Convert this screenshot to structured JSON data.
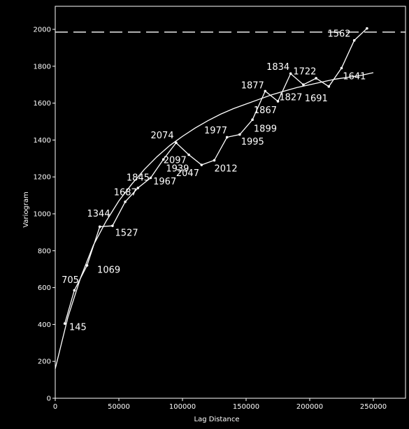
{
  "chart_data": {
    "type": "line",
    "title": "",
    "xlabel": "Lag Distance",
    "ylabel": "Variogram",
    "xlim": [
      0,
      250000
    ],
    "ylim": [
      0,
      2000
    ],
    "x_ticks": [
      0,
      50000,
      100000,
      150000,
      200000,
      250000
    ],
    "x_tick_labels": [
      "0",
      "50000",
      "100000",
      "150000",
      "200000",
      "250000"
    ],
    "y_ticks": [
      0,
      200,
      400,
      600,
      800,
      1000,
      1200,
      1400,
      1600,
      1800,
      2000
    ],
    "y_tick_labels": [
      "0",
      "200",
      "400",
      "600",
      "800",
      "1000",
      "1200",
      "1400",
      "1600",
      "1800",
      "2000"
    ],
    "grid": false,
    "colors": {
      "background": "#000000",
      "foreground": "#ffffff"
    },
    "series": [
      {
        "kind": "experimental",
        "style": "polyline-with-points",
        "x": [
          7500,
          15000,
          25000,
          35000,
          45000,
          55000,
          65000,
          75000,
          85000,
          95000,
          105000,
          115000,
          125000,
          135000,
          145000,
          155000,
          165000,
          175000,
          185000,
          195000,
          205000,
          215000,
          225000,
          235000,
          245000
        ],
        "y": [
          405,
          585,
          720,
          930,
          935,
          1065,
          1140,
          1195,
          1295,
          1385,
          1320,
          1265,
          1290,
          1415,
          1430,
          1510,
          1665,
          1610,
          1760,
          1700,
          1735,
          1690,
          1790,
          1940,
          2005
        ]
      },
      {
        "kind": "model",
        "style": "smooth-curve",
        "x": [
          0,
          10000,
          20000,
          30000,
          40000,
          50000,
          60000,
          70000,
          80000,
          90000,
          100000,
          110000,
          120000,
          130000,
          140000,
          150000,
          160000,
          170000,
          180000,
          190000,
          200000,
          210000,
          220000,
          230000,
          240000,
          250000
        ],
        "y": [
          160,
          440,
          655,
          830,
          960,
          1070,
          1160,
          1240,
          1310,
          1370,
          1420,
          1465,
          1505,
          1540,
          1570,
          1595,
          1620,
          1645,
          1665,
          1685,
          1700,
          1715,
          1730,
          1740,
          1750,
          1765
        ]
      },
      {
        "kind": "sill",
        "style": "dashed-horizontal",
        "y": 1985
      }
    ],
    "annotations": [
      {
        "text": "705",
        "x": 5000,
        "y": 625
      },
      {
        "text": "145",
        "x": 11000,
        "y": 370
      },
      {
        "text": "1069",
        "x": 33000,
        "y": 680
      },
      {
        "text": "1344",
        "x": 25000,
        "y": 985
      },
      {
        "text": "1527",
        "x": 47000,
        "y": 880
      },
      {
        "text": "1687",
        "x": 46000,
        "y": 1100
      },
      {
        "text": "1845",
        "x": 56000,
        "y": 1180
      },
      {
        "text": "1967",
        "x": 77000,
        "y": 1160
      },
      {
        "text": "2097",
        "x": 85000,
        "y": 1275
      },
      {
        "text": "1939",
        "x": 87000,
        "y": 1230
      },
      {
        "text": "2047",
        "x": 95000,
        "y": 1205
      },
      {
        "text": "2074",
        "x": 75000,
        "y": 1410
      },
      {
        "text": "2012",
        "x": 125000,
        "y": 1230
      },
      {
        "text": "1977",
        "x": 117000,
        "y": 1435
      },
      {
        "text": "1995",
        "x": 146000,
        "y": 1375
      },
      {
        "text": "1899",
        "x": 156000,
        "y": 1445
      },
      {
        "text": "1867",
        "x": 156000,
        "y": 1545
      },
      {
        "text": "1877",
        "x": 146000,
        "y": 1680
      },
      {
        "text": "1827",
        "x": 176000,
        "y": 1615
      },
      {
        "text": "1834",
        "x": 166000,
        "y": 1780
      },
      {
        "text": "1722",
        "x": 187000,
        "y": 1755
      },
      {
        "text": "1691",
        "x": 196000,
        "y": 1610
      },
      {
        "text": "1641",
        "x": 226000,
        "y": 1730
      },
      {
        "text": "1562",
        "x": 214000,
        "y": 1960
      }
    ]
  }
}
